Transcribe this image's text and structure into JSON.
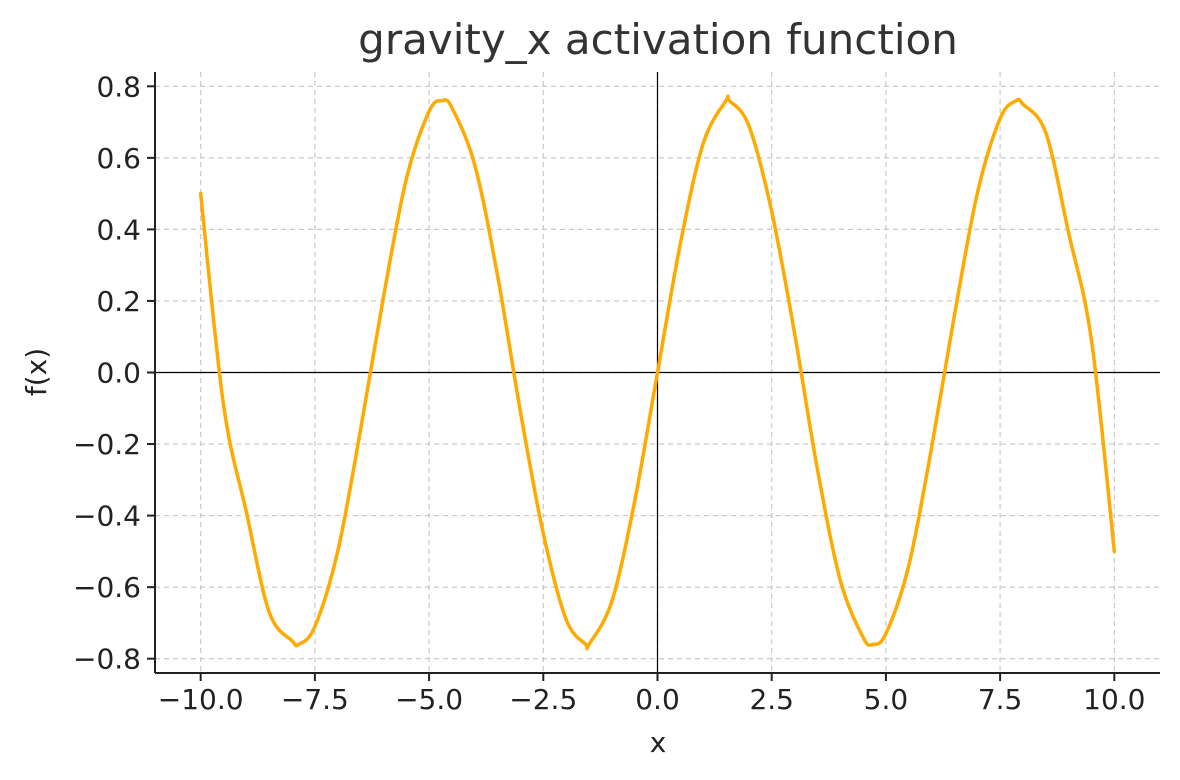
{
  "chart_data": {
    "type": "line",
    "title": "gravity_x activation function",
    "xlabel": "x",
    "ylabel": "f(x)",
    "xlim": [
      -11.0,
      11.0
    ],
    "ylim": [
      -0.84,
      0.84
    ],
    "xticks": [
      -10.0,
      -7.5,
      -5.0,
      -2.5,
      0.0,
      2.5,
      5.0,
      7.5,
      10.0
    ],
    "xtick_labels": [
      "−10.0",
      "−7.5",
      "−5.0",
      "−2.5",
      "0.0",
      "2.5",
      "5.0",
      "7.5",
      "10.0"
    ],
    "yticks": [
      0.8,
      0.6,
      0.4,
      0.2,
      0.0,
      -0.2,
      -0.4,
      -0.6,
      -0.8
    ],
    "ytick_labels": [
      "0.8",
      "0.6",
      "0.4",
      "0.2",
      "0.0",
      "−0.2",
      "−0.4",
      "−0.6",
      "−0.8"
    ],
    "grid": true,
    "line_color": "#FFAA00",
    "series": [
      {
        "x": [
          -10.0,
          -9.5,
          -9.0,
          -8.5,
          -8.0,
          -7.854,
          -7.5,
          -7.0,
          -6.5,
          -6.0,
          -5.5,
          -5.0,
          -4.712,
          -4.5,
          -4.0,
          -3.5,
          -3.0,
          -2.5,
          -2.0,
          -1.571,
          -1.5,
          -1.0,
          -0.5,
          0.0,
          0.5,
          1.0,
          1.5,
          1.571,
          2.0,
          2.5,
          3.0,
          3.5,
          4.0,
          4.5,
          4.712,
          5.0,
          5.5,
          6.0,
          6.5,
          7.0,
          7.5,
          7.854,
          8.0,
          8.5,
          9.0,
          9.5,
          10.0
        ],
        "y": [
          0.5,
          -0.09,
          -0.39,
          -0.67,
          -0.75,
          -0.76,
          -0.71,
          -0.5,
          -0.16,
          0.21,
          0.54,
          0.73,
          0.76,
          0.74,
          0.58,
          0.27,
          -0.11,
          -0.45,
          -0.69,
          -0.76,
          -0.76,
          -0.64,
          -0.36,
          0.0,
          0.36,
          0.64,
          0.76,
          0.76,
          0.69,
          0.45,
          0.11,
          -0.27,
          -0.58,
          -0.74,
          -0.76,
          -0.73,
          -0.54,
          -0.21,
          0.16,
          0.5,
          0.71,
          0.76,
          0.75,
          0.67,
          0.39,
          0.09,
          -0.5
        ]
      }
    ]
  }
}
